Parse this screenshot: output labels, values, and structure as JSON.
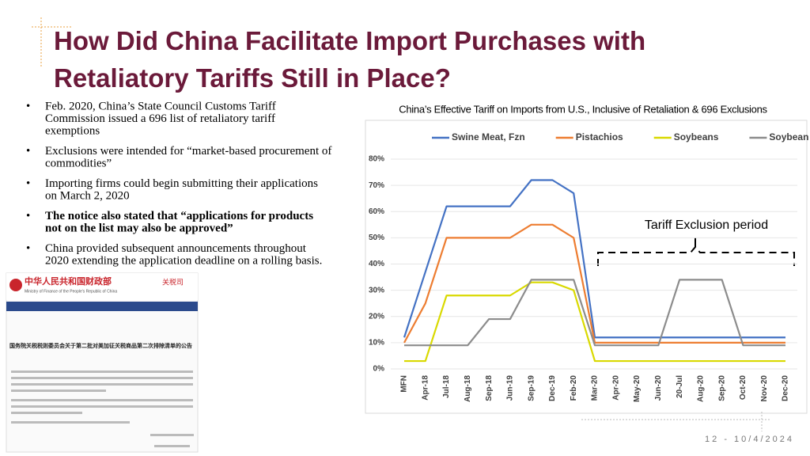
{
  "slide": {
    "title_lines": [
      "How Did China Facilitate Import Purchases with",
      "Retaliatory Tariffs Still in Place?"
    ],
    "bullets": [
      {
        "lines": [
          "Feb. 2020, China’s State Council Customs Tariff",
          "Commission issued a 696 list of retaliatory tariff",
          "exemptions"
        ],
        "bold": false
      },
      {
        "lines": [
          "Exclusions were intended for “market-based procurement of",
          "commodities”"
        ],
        "bold": false
      },
      {
        "lines": [
          "Importing firms could begin submitting their applications",
          "on March 2, 2020"
        ],
        "bold": false
      },
      {
        "lines": [
          "The notice also stated that “applications for products",
          "not on the list may also be approved”"
        ],
        "bold": true
      },
      {
        "lines": [
          "China provided subsequent announcements throughout",
          "2020 extending the application deadline on a rolling basis."
        ],
        "bold": false
      }
    ],
    "document_image": {
      "ministry_cn": "中华人民共和国财政部",
      "ministry_en": "Ministry of Finance of the People's Republic of China",
      "department": "关税司",
      "notice_title": "国务院关税税则委员会关于第二批对美加征关税商品第二次排除清单的公告"
    },
    "footer": "12 - 10/4/2024"
  },
  "chart_data": {
    "type": "line",
    "title": "China’s Effective Tariff on Imports from U.S., Inclusive of Retaliation & 696 Exclusions",
    "annotation": "Tariff Exclusion period",
    "categories": [
      "MFN",
      "Apr-18",
      "Jul-18",
      "Aug-18",
      "Sep-18",
      "Jun-19",
      "Sep-19",
      "Dec-19",
      "Feb-20",
      "Mar-20",
      "Apr-20",
      "May-20",
      "Jun-20",
      "20-Jul",
      "Aug-20",
      "Sep-20",
      "Oct-20",
      "Nov-20",
      "Dec-20"
    ],
    "series": [
      {
        "name": "Swine Meat, Fzn",
        "color": "#4472c4",
        "values": [
          12,
          37,
          62,
          62,
          62,
          62,
          72,
          72,
          67,
          12,
          12,
          12,
          12,
          12,
          12,
          12,
          12,
          12,
          12
        ]
      },
      {
        "name": "Pistachios",
        "color": "#ed7d31",
        "values": [
          10,
          25,
          50,
          50,
          50,
          50,
          55,
          55,
          50,
          10,
          10,
          10,
          10,
          10,
          10,
          10,
          10,
          10,
          10
        ]
      },
      {
        "name": "Soybeans",
        "color": "#d9d900",
        "values": [
          3,
          3,
          28,
          28,
          28,
          28,
          33,
          33,
          30,
          3,
          3,
          3,
          3,
          3,
          3,
          3,
          3,
          3,
          3
        ]
      },
      {
        "name": "Soybean Oil",
        "color": "#8c8c8c",
        "values": [
          9,
          9,
          9,
          9,
          19,
          19,
          34,
          34,
          34,
          9,
          9,
          9,
          9,
          34,
          34,
          34,
          9,
          9,
          9
        ]
      }
    ],
    "ylim": [
      0,
      80
    ],
    "yticks": [
      {
        "value": 0,
        "label": "0%"
      },
      {
        "value": 10,
        "label": "10%"
      },
      {
        "value": 20,
        "label": "20%"
      },
      {
        "value": 30,
        "label": "30%"
      },
      {
        "value": 40,
        "label": "40%"
      },
      {
        "value": 50,
        "label": "50%"
      },
      {
        "value": 60,
        "label": "60%"
      },
      {
        "value": 70,
        "label": "70%"
      },
      {
        "value": 80,
        "label": "80%"
      }
    ],
    "grid": true,
    "legend": "top"
  }
}
